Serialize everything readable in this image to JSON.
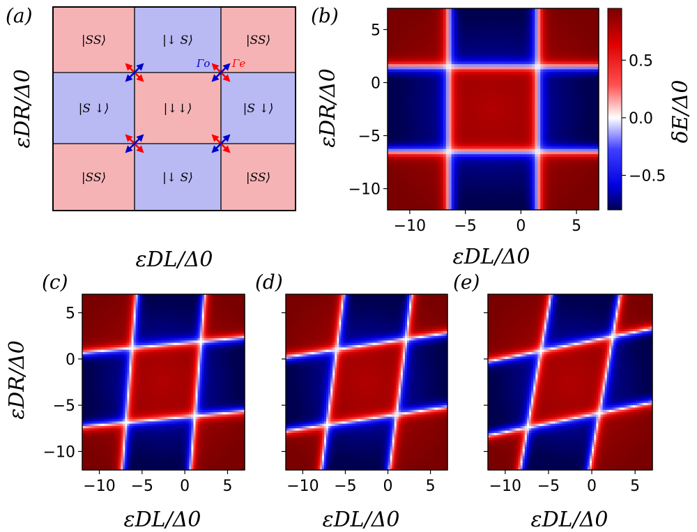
{
  "panels": {
    "a": {
      "letter": "(a)",
      "xlabel": "εDL/Δ0",
      "ylabel": "εDR/Δ0",
      "grid_states": [
        [
          "|SS⟩",
          "|↓ S⟩",
          "|SS⟩"
        ],
        [
          "|S ↓⟩",
          "|↓↓⟩",
          "|S ↓⟩"
        ],
        [
          "|SS⟩",
          "|↓ S⟩",
          "|SS⟩"
        ]
      ],
      "cell_types": [
        [
          "even",
          "odd",
          "even"
        ],
        [
          "odd",
          "even",
          "odd"
        ],
        [
          "even",
          "odd",
          "even"
        ]
      ],
      "rates": {
        "odd": "Γo",
        "even": "Γe"
      }
    },
    "b": {
      "letter": "(b)",
      "xlabel": "εDL/Δ0",
      "ylabel": "εDR/Δ0"
    },
    "c": {
      "letter": "(c)",
      "xlabel": "εDL/Δ0",
      "ylabel": "εDR/Δ0"
    },
    "d": {
      "letter": "(d)",
      "xlabel": "εDL/Δ0"
    },
    "e": {
      "letter": "(e)",
      "xlabel": "εDL/Δ0"
    }
  },
  "colorbar": {
    "label": "δE/Δ0",
    "range": [
      -0.8,
      0.95
    ],
    "ticks": [
      -0.5,
      0.0,
      0.5
    ],
    "tick_labels": [
      "−0.5",
      "0.0",
      "0.5"
    ]
  },
  "colors": {
    "even_cell": "#f5b3b6",
    "odd_cell": "#b9b9f4",
    "gamma_odd": "#0000cc",
    "gamma_even": "#ff0000",
    "cmap_low": "#000050",
    "cmap_blue": "#0000ff",
    "cmap_mid": "#ffffff",
    "cmap_red": "#ff0000",
    "cmap_high": "#800000"
  },
  "chart_data": [
    {
      "panel": "b",
      "type": "heatmap",
      "xlabel": "εDL/Δ0",
      "ylabel": "εDR/Δ0",
      "xlim": [
        -12,
        7
      ],
      "ylim": [
        -12,
        7
      ],
      "xticks": [
        -10,
        -5,
        0,
        5
      ],
      "xtick_labels": [
        "−10",
        "−5",
        "0",
        "5"
      ],
      "yticks": [
        -10,
        -5,
        0,
        5
      ],
      "ytick_labels": [
        "−10",
        "−5",
        "0",
        "5"
      ],
      "colorbar_label": "δE/Δ0",
      "zlim": [
        -0.8,
        0.95
      ],
      "boundaries_x": [
        -6.5,
        1.5
      ],
      "boundaries_y": [
        -6.5,
        1.5
      ],
      "skew": 0.0
    },
    {
      "panel": "c",
      "type": "heatmap",
      "xlabel": "εDL/Δ0",
      "ylabel": "εDR/Δ0",
      "xlim": [
        -12,
        7
      ],
      "ylim": [
        -12,
        7
      ],
      "xticks": [
        -10,
        -5,
        0,
        5
      ],
      "xtick_labels": [
        "−10",
        "−5",
        "0",
        "5"
      ],
      "yticks": [
        -10,
        -5,
        0,
        5
      ],
      "ytick_labels": [
        "−10",
        "−5",
        "0",
        "5"
      ],
      "zlim": [
        -0.8,
        0.95
      ],
      "boundaries_x": [
        -6.5,
        1.5
      ],
      "boundaries_y": [
        -6.5,
        1.5
      ],
      "skew": 0.35
    },
    {
      "panel": "d",
      "type": "heatmap",
      "xlabel": "εDL/Δ0",
      "xlim": [
        -12,
        7
      ],
      "ylim": [
        -12,
        7
      ],
      "xticks": [
        -10,
        -5,
        0,
        5
      ],
      "xtick_labels": [
        "−10",
        "−5",
        "0",
        "5"
      ],
      "yticks": [
        -10,
        -5,
        0,
        5
      ],
      "ytick_labels": [],
      "zlim": [
        -0.8,
        0.95
      ],
      "boundaries_x": [
        -6.5,
        1.5
      ],
      "boundaries_y": [
        -6.5,
        1.5
      ],
      "skew": 0.55
    },
    {
      "panel": "e",
      "type": "heatmap",
      "xlabel": "εDL/Δ0",
      "xlim": [
        -12,
        7
      ],
      "ylim": [
        -12,
        7
      ],
      "xticks": [
        -10,
        -5,
        0,
        5
      ],
      "xtick_labels": [
        "−10",
        "−5",
        "0",
        "5"
      ],
      "yticks": [
        -10,
        -5,
        0,
        5
      ],
      "ytick_labels": [],
      "zlim": [
        -0.8,
        0.95
      ],
      "boundaries_x": [
        -6.5,
        1.5
      ],
      "boundaries_y": [
        -6.5,
        1.5
      ],
      "skew": 0.75
    }
  ]
}
